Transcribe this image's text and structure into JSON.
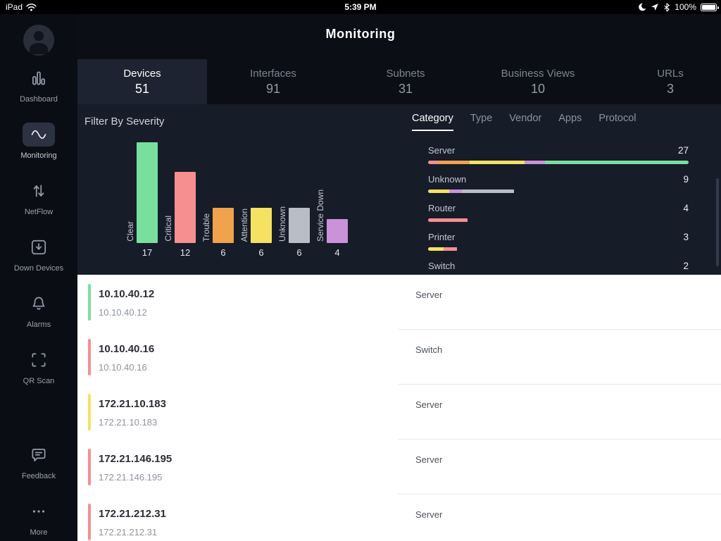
{
  "status_bar": {
    "device": "iPad",
    "time": "5:39 PM",
    "battery": "100%"
  },
  "header": {
    "title": "Monitoring"
  },
  "sidebar": {
    "items": [
      {
        "label": "Dashboard",
        "icon": "dashboard",
        "active": false,
        "gap_before": false
      },
      {
        "label": "Monitoring",
        "icon": "monitoring",
        "active": true,
        "gap_before": false
      },
      {
        "label": "NetFlow",
        "icon": "netflow",
        "active": false,
        "gap_before": false
      },
      {
        "label": "Down Devices",
        "icon": "down-devices",
        "active": false,
        "gap_before": false
      },
      {
        "label": "Alarms",
        "icon": "alarms",
        "active": false,
        "gap_before": false
      },
      {
        "label": "QR Scan",
        "icon": "qr-scan",
        "active": false,
        "gap_before": false
      },
      {
        "label": "Feedback",
        "icon": "feedback",
        "active": false,
        "gap_before": true
      },
      {
        "label": "More",
        "icon": "more",
        "active": false,
        "gap_before": false
      }
    ]
  },
  "tabs": [
    {
      "label": "Devices",
      "count": "51",
      "active": true
    },
    {
      "label": "Interfaces",
      "count": "91",
      "active": false
    },
    {
      "label": "Subnets",
      "count": "31",
      "active": false
    },
    {
      "label": "Business Views",
      "count": "10",
      "active": false
    },
    {
      "label": "URLs",
      "count": "3",
      "active": false
    }
  ],
  "filter": {
    "title": "Filter By Severity",
    "chart_data": {
      "type": "bar",
      "title": "Filter By Severity",
      "categories": [
        "Clear",
        "Critical",
        "Trouble",
        "Attention",
        "Unknown",
        "Service Down"
      ],
      "values": [
        17,
        12,
        6,
        6,
        6,
        4
      ],
      "colors": [
        "#79df9d",
        "#f68f90",
        "#f0a24c",
        "#f5e263",
        "#b9bdc6",
        "#ca92d8"
      ],
      "ylim": [
        0,
        17
      ],
      "legend": "none",
      "grid": false
    },
    "category_tabs": [
      {
        "label": "Category",
        "active": true
      },
      {
        "label": "Type",
        "active": false
      },
      {
        "label": "Vendor",
        "active": false
      },
      {
        "label": "Apps",
        "active": false
      },
      {
        "label": "Protocol",
        "active": false
      }
    ],
    "categories": [
      {
        "name": "Server",
        "count": 27,
        "segments": [
          {
            "color": "#f68f90",
            "pct": 4
          },
          {
            "color": "#f0a24c",
            "pct": 12
          },
          {
            "color": "#f5e263",
            "pct": 21
          },
          {
            "color": "#ca92d8",
            "pct": 8
          },
          {
            "color": "#79df9d",
            "pct": 55
          }
        ]
      },
      {
        "name": "Unknown",
        "count": 9,
        "segments": [
          {
            "color": "#f5e263",
            "pct": 8
          },
          {
            "color": "#ca92d8",
            "pct": 5
          },
          {
            "color": "#b9bdc6",
            "pct": 20
          }
        ]
      },
      {
        "name": "Router",
        "count": 4,
        "segments": [
          {
            "color": "#f68f90",
            "pct": 15
          }
        ]
      },
      {
        "name": "Printer",
        "count": 3,
        "segments": [
          {
            "color": "#f5e263",
            "pct": 6
          },
          {
            "color": "#f68f90",
            "pct": 5
          }
        ]
      },
      {
        "name": "Switch",
        "count": 2,
        "segments": [
          {
            "color": "#f68f90",
            "pct": 7
          }
        ]
      }
    ]
  },
  "devices": [
    {
      "name": "10.10.40.12",
      "address": "10.10.40.12",
      "type": "Server",
      "severity_color": "#79df9d"
    },
    {
      "name": "10.10.40.16",
      "address": "10.10.40.16",
      "type": "Switch",
      "severity_color": "#f68f90"
    },
    {
      "name": "172.21.10.183",
      "address": "172.21.10.183",
      "type": "Server",
      "severity_color": "#f5e263"
    },
    {
      "name": "172.21.146.195",
      "address": "172.21.146.195",
      "type": "Server",
      "severity_color": "#f68f90"
    },
    {
      "name": "172.21.212.31",
      "address": "172.21.212.31",
      "type": "Server",
      "severity_color": "#f68f90"
    }
  ]
}
